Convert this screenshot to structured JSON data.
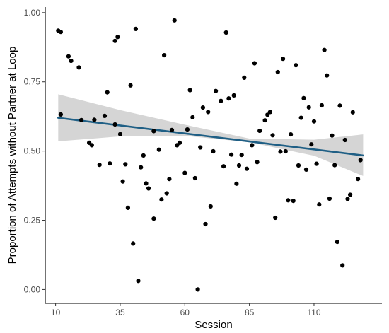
{
  "chart_data": {
    "type": "scatter",
    "xlabel": "Session",
    "ylabel": "Proportion of Attempts without Partner at Loop",
    "xlim": [
      6,
      133
    ],
    "ylim": [
      -0.05,
      1.02
    ],
    "x_ticks": [
      10,
      35,
      60,
      85,
      110
    ],
    "x_tick_labels": [
      "10",
      "35",
      "60",
      "85",
      "110"
    ],
    "y_ticks": [
      0,
      0.25,
      0.5,
      0.75,
      1.0
    ],
    "y_tick_labels": [
      "0.00",
      "0.25",
      "0.50",
      "0.75",
      "1.00"
    ],
    "grid": false,
    "colors": {
      "points": "#000000",
      "trend_line": "#1f5f85",
      "confidence_band": "#d0d0d0"
    },
    "trend_line": {
      "x": [
        11,
        129
      ],
      "y": [
        0.62,
        0.484
      ]
    },
    "confidence_band": {
      "x": [
        11,
        35,
        60,
        85,
        110,
        129
      ],
      "lower": [
        0.535,
        0.553,
        0.555,
        0.532,
        0.483,
        0.41
      ],
      "upper": [
        0.705,
        0.648,
        0.595,
        0.545,
        0.541,
        0.56
      ]
    },
    "points": [
      {
        "x": 11,
        "y": 0.935
      },
      {
        "x": 12,
        "y": 0.93
      },
      {
        "x": 12,
        "y": 0.632
      },
      {
        "x": 15,
        "y": 0.842
      },
      {
        "x": 16,
        "y": 0.826
      },
      {
        "x": 19,
        "y": 0.802
      },
      {
        "x": 20,
        "y": 0.612
      },
      {
        "x": 23,
        "y": 0.53
      },
      {
        "x": 24,
        "y": 0.521
      },
      {
        "x": 25,
        "y": 0.613
      },
      {
        "x": 27,
        "y": 0.45
      },
      {
        "x": 29,
        "y": 0.627
      },
      {
        "x": 30,
        "y": 0.712
      },
      {
        "x": 31,
        "y": 0.455
      },
      {
        "x": 33,
        "y": 0.596
      },
      {
        "x": 33,
        "y": 0.898
      },
      {
        "x": 34,
        "y": 0.912
      },
      {
        "x": 35,
        "y": 0.561
      },
      {
        "x": 36,
        "y": 0.39
      },
      {
        "x": 37,
        "y": 0.452
      },
      {
        "x": 38,
        "y": 0.295
      },
      {
        "x": 39,
        "y": 0.737
      },
      {
        "x": 40,
        "y": 0.166
      },
      {
        "x": 41,
        "y": 0.941
      },
      {
        "x": 42,
        "y": 0.031
      },
      {
        "x": 43,
        "y": 0.441
      },
      {
        "x": 44,
        "y": 0.484
      },
      {
        "x": 45,
        "y": 0.383
      },
      {
        "x": 46,
        "y": 0.365
      },
      {
        "x": 48,
        "y": 0.572
      },
      {
        "x": 48,
        "y": 0.256
      },
      {
        "x": 50,
        "y": 0.505
      },
      {
        "x": 51,
        "y": 0.325
      },
      {
        "x": 52,
        "y": 0.846
      },
      {
        "x": 53,
        "y": 0.347
      },
      {
        "x": 54,
        "y": 0.399
      },
      {
        "x": 55,
        "y": 0.576
      },
      {
        "x": 56,
        "y": 0.972
      },
      {
        "x": 57,
        "y": 0.521
      },
      {
        "x": 58,
        "y": 0.53
      },
      {
        "x": 60,
        "y": 0.421
      },
      {
        "x": 61,
        "y": 0.578
      },
      {
        "x": 62,
        "y": 0.72
      },
      {
        "x": 63,
        "y": 0.622
      },
      {
        "x": 64,
        "y": 0.402
      },
      {
        "x": 65,
        "y": 0.0
      },
      {
        "x": 66,
        "y": 0.513
      },
      {
        "x": 67,
        "y": 0.657
      },
      {
        "x": 68,
        "y": 0.236
      },
      {
        "x": 69,
        "y": 0.641
      },
      {
        "x": 70,
        "y": 0.3
      },
      {
        "x": 71,
        "y": 0.499
      },
      {
        "x": 72,
        "y": 0.717
      },
      {
        "x": 74,
        "y": 0.681
      },
      {
        "x": 75,
        "y": 0.445
      },
      {
        "x": 76,
        "y": 0.928
      },
      {
        "x": 77,
        "y": 0.69
      },
      {
        "x": 78,
        "y": 0.487
      },
      {
        "x": 79,
        "y": 0.701
      },
      {
        "x": 80,
        "y": 0.382
      },
      {
        "x": 81,
        "y": 0.448
      },
      {
        "x": 82,
        "y": 0.486
      },
      {
        "x": 83,
        "y": 0.765
      },
      {
        "x": 84,
        "y": 0.436
      },
      {
        "x": 86,
        "y": 0.521
      },
      {
        "x": 87,
        "y": 0.817
      },
      {
        "x": 88,
        "y": 0.46
      },
      {
        "x": 89,
        "y": 0.573
      },
      {
        "x": 91,
        "y": 0.611
      },
      {
        "x": 92,
        "y": 0.631
      },
      {
        "x": 93,
        "y": 0.641
      },
      {
        "x": 94,
        "y": 0.557
      },
      {
        "x": 95,
        "y": 0.259
      },
      {
        "x": 96,
        "y": 0.785
      },
      {
        "x": 97,
        "y": 0.498
      },
      {
        "x": 98,
        "y": 0.833
      },
      {
        "x": 99,
        "y": 0.499
      },
      {
        "x": 100,
        "y": 0.322
      },
      {
        "x": 101,
        "y": 0.56
      },
      {
        "x": 102,
        "y": 0.32
      },
      {
        "x": 103,
        "y": 0.81
      },
      {
        "x": 104,
        "y": 0.448
      },
      {
        "x": 105,
        "y": 0.62
      },
      {
        "x": 106,
        "y": 0.691
      },
      {
        "x": 107,
        "y": 0.433
      },
      {
        "x": 108,
        "y": 0.658
      },
      {
        "x": 109,
        "y": 0.524
      },
      {
        "x": 110,
        "y": 0.607
      },
      {
        "x": 111,
        "y": 0.454
      },
      {
        "x": 112,
        "y": 0.307
      },
      {
        "x": 113,
        "y": 0.665
      },
      {
        "x": 114,
        "y": 0.865
      },
      {
        "x": 115,
        "y": 0.773
      },
      {
        "x": 116,
        "y": 0.328
      },
      {
        "x": 117,
        "y": 0.556
      },
      {
        "x": 118,
        "y": 0.449
      },
      {
        "x": 119,
        "y": 0.172
      },
      {
        "x": 120,
        "y": 0.664
      },
      {
        "x": 121,
        "y": 0.087
      },
      {
        "x": 122,
        "y": 0.54
      },
      {
        "x": 123,
        "y": 0.327
      },
      {
        "x": 124,
        "y": 0.342
      },
      {
        "x": 125,
        "y": 0.64
      },
      {
        "x": 127,
        "y": 0.399
      },
      {
        "x": 128,
        "y": 0.467
      }
    ]
  }
}
